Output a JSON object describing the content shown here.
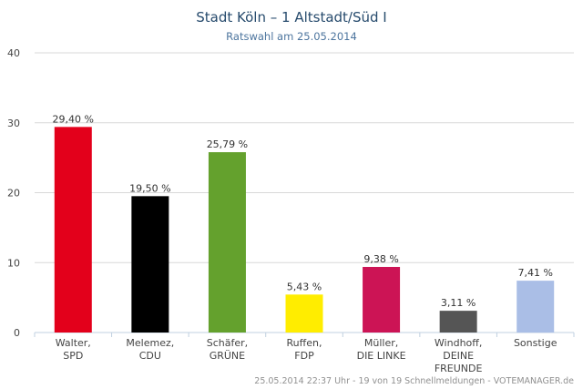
{
  "chart_data": {
    "type": "bar",
    "title": "Stadt Köln – 1 Altstadt/Süd I",
    "subtitle": "Ratswahl am 25.05.2014",
    "categories": [
      [
        "Walter,",
        "SPD"
      ],
      [
        "Melemez,",
        "CDU"
      ],
      [
        "Schäfer,",
        "GRÜNE"
      ],
      [
        "Ruffen,",
        "FDP"
      ],
      [
        "Müller,",
        "DIE LINKE"
      ],
      [
        "Windhoff,",
        "DEINE",
        "FREUNDE"
      ],
      [
        "Sonstige"
      ]
    ],
    "values": [
      29.4,
      19.5,
      25.79,
      5.43,
      9.38,
      3.11,
      7.41
    ],
    "value_labels": [
      "29,40 %",
      "19,50 %",
      "25,79 %",
      "5,43 %",
      "9,38 %",
      "3,11 %",
      "7,41 %"
    ],
    "colors": [
      "#e3001b",
      "#000000",
      "#64a12d",
      "#ffed00",
      "#cc1455",
      "#555555",
      "#aabee6"
    ],
    "yticks": [
      0,
      10,
      20,
      30,
      40
    ],
    "ylim": [
      0,
      40
    ],
    "grid": true,
    "legend": "none",
    "footer": "25.05.2014 22:37 Uhr - 19 von 19 Schnellmeldungen - VOTEMANAGER.de"
  }
}
